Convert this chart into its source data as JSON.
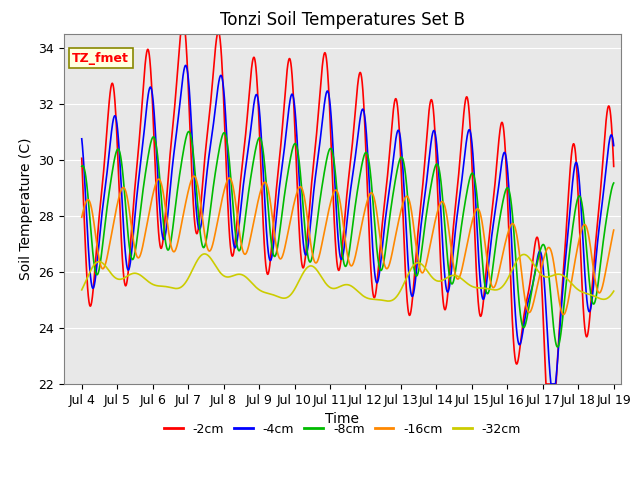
{
  "title": "Tonzi Soil Temperatures Set B",
  "xlabel": "Time",
  "ylabel": "Soil Temperature (C)",
  "annotation": "TZ_fmet",
  "ylim": [
    22,
    34.5
  ],
  "xlim_days": [
    3.5,
    19.2
  ],
  "yticks": [
    22,
    24,
    26,
    28,
    30,
    32,
    34
  ],
  "x_tick_labels": [
    "Jul 4",
    "Jul 5",
    "Jul 6",
    "Jul 7",
    "Jul 8",
    "Jul 9",
    "Jul 10",
    "Jul 11",
    "Jul 12",
    "Jul 13",
    "Jul 14",
    "Jul 15",
    "Jul 16",
    "Jul 17",
    "Jul 18",
    "Jul 19"
  ],
  "x_tick_positions": [
    4,
    5,
    6,
    7,
    8,
    9,
    10,
    11,
    12,
    13,
    14,
    15,
    16,
    17,
    18,
    19
  ],
  "series_labels": [
    "-2cm",
    "-4cm",
    "-8cm",
    "-16cm",
    "-32cm"
  ],
  "series_colors": [
    "#ff0000",
    "#0000ff",
    "#00bb00",
    "#ff8800",
    "#cccc00"
  ],
  "background_color": "#e8e8e8",
  "title_fontsize": 12,
  "axis_label_fontsize": 10,
  "tick_fontsize": 9,
  "legend_fontsize": 9,
  "linewidth": 1.2
}
